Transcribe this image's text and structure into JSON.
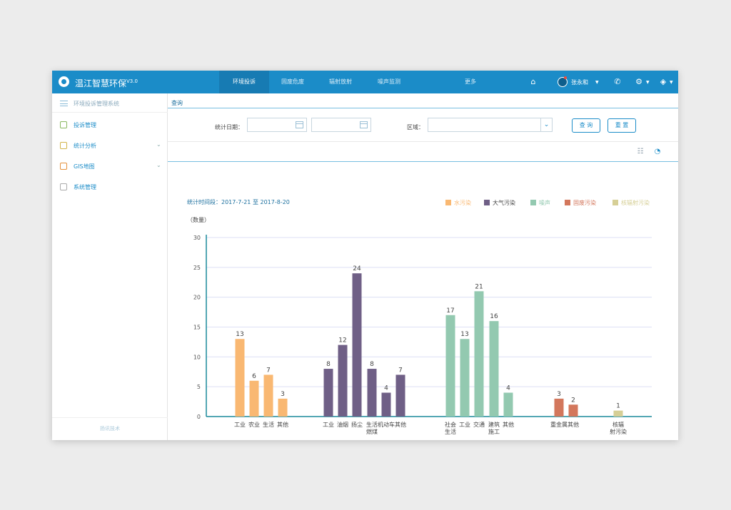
{
  "app": {
    "title": "温江智慧环保",
    "version": "V3.0"
  },
  "nav": {
    "tabs": [
      {
        "label": "环境投诉",
        "active": true
      },
      {
        "label": "固废危废",
        "active": false
      },
      {
        "label": "辐射放射",
        "active": false
      },
      {
        "label": "噪声监测",
        "active": false
      },
      {
        "label": "更多",
        "active": false
      }
    ]
  },
  "topbar": {
    "user_name": "张永和",
    "icons": [
      "home-icon",
      "user-avatar-icon",
      "phone-icon",
      "gear-icon",
      "layers-icon"
    ]
  },
  "sidebar": {
    "title": "环境投诉管理系统",
    "items": [
      {
        "label": "投诉管理",
        "icon": "cube-icon",
        "expandable": false
      },
      {
        "label": "统计分析",
        "icon": "chart-icon",
        "expandable": true
      },
      {
        "label": "GIS地图",
        "icon": "map-icon",
        "expandable": true
      },
      {
        "label": "系统管理",
        "icon": "document-icon",
        "expandable": false
      }
    ],
    "footer": "扬讯技术"
  },
  "query": {
    "title": "查询",
    "date_label": "统计日期：",
    "region_label": "区域：",
    "search_button": "查 询",
    "reset_button": "重 置"
  },
  "colors": {
    "brand": "#1b8cc8",
    "water": "#f9b872",
    "air": "#6f5f86",
    "noise": "#93c9b0",
    "solid_waste": "#d3775c",
    "radiation": "#d6cf96"
  },
  "chart_data": {
    "type": "bar",
    "period_label": "统计时间段：2017-7-21 至 2017-8-20",
    "ylabel": "（数量）",
    "ylim": [
      0,
      30
    ],
    "yticks": [
      0,
      5,
      10,
      15,
      20,
      25,
      30
    ],
    "legend_position": "top-right",
    "grid": true,
    "groups": [
      {
        "series": "水污染",
        "color": "#f9b872",
        "categories": [
          "工业",
          "农业",
          "生活",
          "其他"
        ],
        "values": [
          13,
          6,
          7,
          3
        ]
      },
      {
        "series": "大气污染",
        "color": "#6f5f86",
        "categories": [
          "工业",
          "油烟",
          "扬尘",
          "生活燃煤",
          "机动车",
          "其他"
        ],
        "values": [
          8,
          12,
          24,
          8,
          4,
          7
        ]
      },
      {
        "series": "噪声",
        "color": "#93c9b0",
        "categories": [
          "社会生活",
          "工业",
          "交通",
          "建筑施工",
          "其他"
        ],
        "values": [
          17,
          13,
          21,
          16,
          4
        ]
      },
      {
        "series": "固废污染",
        "color": "#d3775c",
        "categories": [
          "重金属",
          "其他"
        ],
        "values": [
          3,
          2
        ]
      },
      {
        "series": "核辐射污染",
        "color": "#d6cf96",
        "categories": [
          "核辐射污染"
        ],
        "values": [
          1
        ]
      }
    ]
  }
}
